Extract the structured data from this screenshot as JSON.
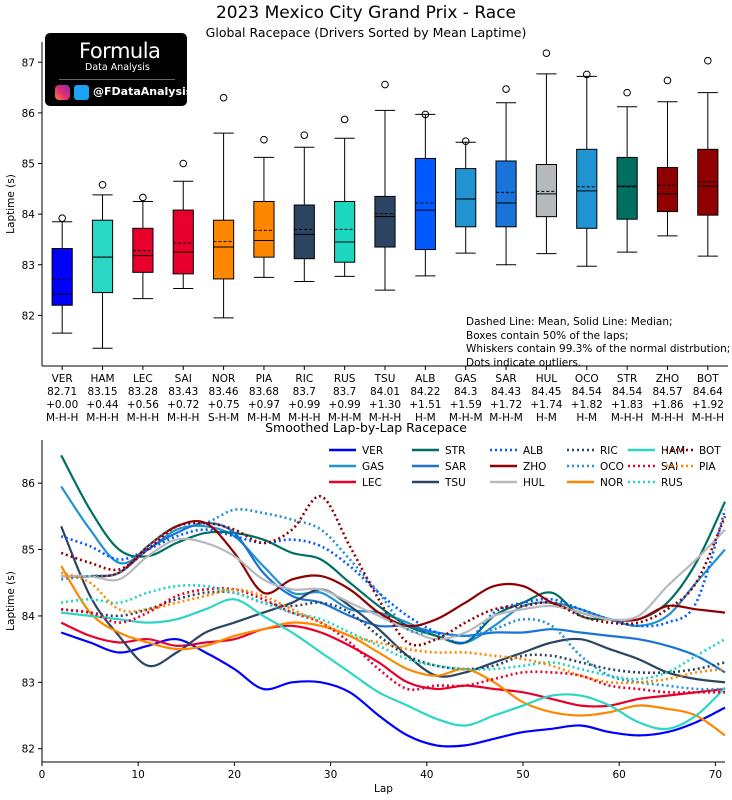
{
  "logo": {
    "name": "Formula",
    "tagline": "Data Analysis",
    "handle": "@FDataAnalysis",
    "icons": [
      "instagram-icon",
      "twitter-icon"
    ]
  },
  "box_note": [
    "Dashed Line: Mean, Solid Line: Median;",
    "Boxes contain 50% of the laps;",
    "Whiskers contain 99.3% of the normal distrbution;",
    "Dots indicate outliers."
  ],
  "chart_data": [
    {
      "type": "box",
      "title": "2023 Mexico City Grand Prix - Race",
      "subtitle": "Global Racepace (Drivers Sorted by Mean Laptime)",
      "ylabel": "Laptime (s)",
      "ylim": [
        81.0,
        87.4
      ],
      "yticks": [
        82,
        83,
        84,
        85,
        86,
        87
      ],
      "drivers": [
        {
          "code": "VER",
          "mean": "82.71",
          "gap": "+0.00",
          "tyres": "M-H-H",
          "color": "#0000ff",
          "q1": 82.2,
          "median": 82.42,
          "q3": 83.32,
          "whisker_low": 81.65,
          "whisker_high": 83.85,
          "outliers": [
            83.92
          ]
        },
        {
          "code": "HAM",
          "mean": "83.15",
          "gap": "+0.44",
          "tyres": "M-H-H",
          "color": "#2ad6c4",
          "q1": 82.45,
          "median": 83.15,
          "q3": 83.88,
          "whisker_low": 81.35,
          "whisker_high": 84.38,
          "outliers": [
            84.58
          ]
        },
        {
          "code": "LEC",
          "mean": "83.28",
          "gap": "+0.56",
          "tyres": "M-H-H",
          "color": "#e8002d",
          "q1": 82.85,
          "median": 83.18,
          "q3": 83.72,
          "whisker_low": 82.33,
          "whisker_high": 84.25,
          "outliers": [
            84.33
          ]
        },
        {
          "code": "SAI",
          "mean": "83.43",
          "gap": "+0.72",
          "tyres": "M-H-H",
          "color": "#e8002d",
          "q1": 82.82,
          "median": 83.25,
          "q3": 84.08,
          "whisker_low": 82.53,
          "whisker_high": 84.65,
          "outliers": [
            85.0
          ]
        },
        {
          "code": "NOR",
          "mean": "83.46",
          "gap": "+0.75",
          "tyres": "S-H-M",
          "color": "#ff8700",
          "q1": 82.72,
          "median": 83.35,
          "q3": 83.88,
          "whisker_low": 81.95,
          "whisker_high": 85.6,
          "outliers": [
            86.3
          ]
        },
        {
          "code": "PIA",
          "mean": "83.68",
          "gap": "+0.97",
          "tyres": "M-H-M",
          "color": "#ff8700",
          "q1": 83.15,
          "median": 83.48,
          "q3": 84.25,
          "whisker_low": 82.75,
          "whisker_high": 85.12,
          "outliers": [
            85.47
          ]
        },
        {
          "code": "RIC",
          "mean": "83.7",
          "gap": "+0.99",
          "tyres": "M-H-H",
          "color": "#2b4562",
          "q1": 83.12,
          "median": 83.6,
          "q3": 84.18,
          "whisker_low": 82.67,
          "whisker_high": 85.32,
          "outliers": [
            85.56
          ]
        },
        {
          "code": "RUS",
          "mean": "83.7",
          "gap": "+0.99",
          "tyres": "M-H-M",
          "color": "#1dd6c0",
          "q1": 83.05,
          "median": 83.45,
          "q3": 84.25,
          "whisker_low": 82.77,
          "whisker_high": 85.5,
          "outliers": [
            85.87
          ]
        },
        {
          "code": "TSU",
          "mean": "84.01",
          "gap": "+1.30",
          "tyres": "M-H-H",
          "color": "#2b4562",
          "q1": 83.35,
          "median": 83.95,
          "q3": 84.35,
          "whisker_low": 82.5,
          "whisker_high": 86.05,
          "outliers": [
            86.56
          ]
        },
        {
          "code": "ALB",
          "mean": "84.22",
          "gap": "+1.51",
          "tyres": "H-M",
          "color": "#005aff",
          "q1": 83.3,
          "median": 84.08,
          "q3": 85.1,
          "whisker_low": 82.78,
          "whisker_high": 85.97,
          "outliers": [
            85.97
          ]
        },
        {
          "code": "GAS",
          "mean": "84.3",
          "gap": "+1.59",
          "tyres": "M-H-M",
          "color": "#2293d1",
          "q1": 83.75,
          "median": 84.3,
          "q3": 84.9,
          "whisker_low": 83.23,
          "whisker_high": 85.42,
          "outliers": [
            85.44
          ]
        },
        {
          "code": "SAR",
          "mean": "84.43",
          "gap": "+1.72",
          "tyres": "M-H-M",
          "color": "#1a73d8",
          "q1": 83.75,
          "median": 84.22,
          "q3": 85.05,
          "whisker_low": 83.0,
          "whisker_high": 86.2,
          "outliers": [
            86.47
          ]
        },
        {
          "code": "HUL",
          "mean": "84.45",
          "gap": "+1.74",
          "tyres": "H-M",
          "color": "#b6babd",
          "q1": 83.95,
          "median": 84.4,
          "q3": 84.98,
          "whisker_low": 83.22,
          "whisker_high": 86.77,
          "outliers": [
            87.18
          ]
        },
        {
          "code": "OCO",
          "mean": "84.54",
          "gap": "+1.82",
          "tyres": "H-M",
          "color": "#2293d1",
          "q1": 83.72,
          "median": 84.46,
          "q3": 85.28,
          "whisker_low": 82.97,
          "whisker_high": 86.72,
          "outliers": [
            86.76
          ]
        },
        {
          "code": "STR",
          "mean": "84.54",
          "gap": "+1.83",
          "tyres": "M-H-H",
          "color": "#006f62",
          "q1": 83.9,
          "median": 84.55,
          "q3": 85.12,
          "whisker_low": 83.25,
          "whisker_high": 86.12,
          "outliers": [
            86.4
          ]
        },
        {
          "code": "ZHO",
          "mean": "84.57",
          "gap": "+1.86",
          "tyres": "M-H-H",
          "color": "#900000",
          "q1": 84.05,
          "median": 84.4,
          "q3": 84.92,
          "whisker_low": 83.57,
          "whisker_high": 86.22,
          "outliers": [
            86.64
          ]
        },
        {
          "code": "BOT",
          "mean": "84.64",
          "gap": "+1.92",
          "tyres": "M-H-H",
          "color": "#900000",
          "q1": 83.98,
          "median": 84.55,
          "q3": 85.28,
          "whisker_low": 83.17,
          "whisker_high": 86.4,
          "outliers": [
            87.03
          ]
        }
      ]
    },
    {
      "type": "line",
      "title": "Smoothed Lap-by-Lap Racepace",
      "xlabel": "Lap",
      "ylabel": "Laptime (s)",
      "xlim": [
        0,
        71
      ],
      "ylim": [
        81.8,
        86.65
      ],
      "xticks": [
        0,
        10,
        20,
        30,
        40,
        50,
        60,
        70
      ],
      "yticks": [
        82,
        83,
        84,
        85,
        86
      ],
      "x": [
        2,
        5,
        8,
        11,
        14,
        17,
        20,
        23,
        26,
        29,
        32,
        35,
        38,
        41,
        44,
        47,
        50,
        53,
        56,
        59,
        62,
        65,
        68,
        71
      ],
      "series": [
        {
          "name": "VER",
          "color": "#0000ff",
          "style": "solid",
          "values": [
            83.75,
            83.6,
            83.45,
            83.55,
            83.65,
            83.45,
            83.2,
            82.9,
            83.0,
            83.0,
            82.85,
            82.5,
            82.2,
            82.05,
            82.05,
            82.15,
            82.25,
            82.3,
            82.35,
            82.25,
            82.2,
            82.25,
            82.4,
            82.62
          ]
        },
        {
          "name": "GAS",
          "color": "#2293d1",
          "style": "solid",
          "values": [
            85.95,
            85.3,
            84.8,
            85.0,
            85.3,
            85.35,
            85.2,
            84.75,
            84.35,
            84.35,
            84.1,
            84.05,
            83.9,
            83.7,
            83.6,
            83.85,
            84.15,
            84.2,
            84.1,
            83.95,
            83.85,
            84.0,
            84.5,
            85.0
          ]
        },
        {
          "name": "LEC",
          "color": "#e8002d",
          "style": "solid",
          "values": [
            83.9,
            83.7,
            83.6,
            83.65,
            83.55,
            83.6,
            83.65,
            83.8,
            83.85,
            83.75,
            83.55,
            83.3,
            83.0,
            82.9,
            82.95,
            82.9,
            82.85,
            82.75,
            82.65,
            82.65,
            82.75,
            82.8,
            82.85,
            82.9
          ]
        },
        {
          "name": "STR",
          "color": "#006f62",
          "style": "solid",
          "values": [
            86.42,
            85.6,
            85.0,
            84.9,
            85.1,
            85.25,
            85.25,
            85.15,
            84.95,
            84.85,
            84.5,
            84.15,
            83.85,
            83.7,
            83.6,
            84.0,
            84.2,
            84.35,
            84.0,
            83.95,
            83.95,
            84.2,
            84.8,
            85.72
          ]
        },
        {
          "name": "SAR",
          "color": "#1a73d8",
          "style": "solid",
          "values": [
            84.6,
            84.6,
            84.65,
            85.0,
            85.25,
            85.4,
            85.25,
            84.65,
            84.3,
            84.2,
            84.0,
            83.85,
            83.85,
            83.75,
            83.7,
            83.75,
            83.75,
            83.8,
            83.75,
            83.7,
            83.65,
            83.55,
            83.4,
            83.15
          ]
        },
        {
          "name": "TSU",
          "color": "#2b4562",
          "style": "solid",
          "values": [
            85.35,
            84.3,
            83.7,
            83.25,
            83.45,
            83.75,
            83.9,
            84.05,
            84.2,
            84.4,
            84.15,
            83.8,
            83.4,
            83.1,
            83.15,
            83.3,
            83.45,
            83.6,
            83.65,
            83.5,
            83.35,
            83.15,
            83.05,
            83.0
          ]
        },
        {
          "name": "ALB",
          "color": "#005aff",
          "style": "dotted",
          "values": [
            85.2,
            85.05,
            84.85,
            85.0,
            85.2,
            85.3,
            85.2,
            85.1,
            85.15,
            85.05,
            84.75,
            84.35,
            84.0,
            83.75,
            83.6,
            84.05,
            84.2,
            84.25,
            84.1,
            83.95,
            83.85,
            83.9,
            84.2,
            85.6
          ]
        },
        {
          "name": "ZHO",
          "color": "#900000",
          "style": "solid",
          "values": [
            84.6,
            84.6,
            84.65,
            85.05,
            85.35,
            85.4,
            84.95,
            84.35,
            84.55,
            84.6,
            84.4,
            84.05,
            83.85,
            83.95,
            84.2,
            84.45,
            84.45,
            84.2,
            84.05,
            83.95,
            83.95,
            84.15,
            84.1,
            84.05
          ]
        },
        {
          "name": "HUL",
          "color": "#b6babd",
          "style": "solid",
          "values": [
            84.6,
            84.6,
            84.55,
            84.9,
            85.15,
            85.1,
            84.9,
            84.55,
            84.4,
            84.4,
            84.2,
            84.0,
            83.8,
            83.65,
            83.75,
            84.0,
            84.1,
            84.15,
            84.05,
            83.95,
            84.0,
            84.45,
            84.85,
            85.3
          ]
        },
        {
          "name": "RIC",
          "color": "#2b4562",
          "style": "dotted",
          "values": [
            84.1,
            84.05,
            84.0,
            84.1,
            84.25,
            84.35,
            84.35,
            84.2,
            84.15,
            84.2,
            84.05,
            83.7,
            83.4,
            83.25,
            83.2,
            83.25,
            83.4,
            83.4,
            83.3,
            83.2,
            83.15,
            83.15,
            83.2,
            83.3
          ]
        },
        {
          "name": "OCO",
          "color": "#2293d1",
          "style": "dotted",
          "values": [
            84.55,
            84.6,
            84.65,
            85.05,
            85.35,
            85.4,
            85.6,
            85.55,
            85.45,
            85.3,
            84.85,
            84.35,
            83.8,
            83.75,
            83.7,
            83.8,
            83.95,
            83.85,
            83.4,
            83.1,
            83.0,
            82.95,
            82.9,
            82.9
          ]
        },
        {
          "name": "NOR",
          "color": "#ff8700",
          "style": "solid",
          "values": [
            84.75,
            84.05,
            83.75,
            83.6,
            83.5,
            83.55,
            83.7,
            83.8,
            83.9,
            83.85,
            83.7,
            83.45,
            83.2,
            83.1,
            83.2,
            83.0,
            82.7,
            82.55,
            82.5,
            82.55,
            82.65,
            82.6,
            82.5,
            82.2
          ]
        },
        {
          "name": "HAM",
          "color": "#2ad6c4",
          "style": "solid",
          "values": [
            84.05,
            84.0,
            83.95,
            83.9,
            83.95,
            84.1,
            84.25,
            84.0,
            83.75,
            83.45,
            83.15,
            82.85,
            82.65,
            82.45,
            82.35,
            82.5,
            82.65,
            82.8,
            82.8,
            82.65,
            82.4,
            82.3,
            82.5,
            82.92
          ]
        },
        {
          "name": "SAI",
          "color": "#e8002d",
          "style": "dotted",
          "values": [
            84.1,
            84.05,
            83.9,
            84.05,
            84.3,
            84.4,
            84.4,
            84.25,
            84.05,
            83.9,
            83.6,
            83.2,
            82.9,
            82.95,
            82.95,
            83.05,
            83.15,
            83.15,
            83.1,
            82.95,
            82.9,
            82.85,
            82.85,
            82.85
          ]
        },
        {
          "name": "RUS",
          "color": "#1dd6c0",
          "style": "dotted",
          "values": [
            84.2,
            84.25,
            84.2,
            84.35,
            84.45,
            84.45,
            84.35,
            84.2,
            84.05,
            83.95,
            83.75,
            83.55,
            83.35,
            83.25,
            83.2,
            83.2,
            83.25,
            83.3,
            83.2,
            83.1,
            83.05,
            83.15,
            83.4,
            83.65
          ]
        },
        {
          "name": "BOT",
          "color": "#900000",
          "style": "dotted",
          "values": [
            84.95,
            84.8,
            84.7,
            85.0,
            85.35,
            85.4,
            85.3,
            85.1,
            85.3,
            85.8,
            85.05,
            84.25,
            83.6,
            83.65,
            83.9,
            84.1,
            84.15,
            84.2,
            84.0,
            83.9,
            83.9,
            84.1,
            84.5,
            85.5
          ]
        },
        {
          "name": "PIA",
          "color": "#ff8700",
          "style": "dotted",
          "values": [
            84.65,
            84.5,
            84.1,
            84.1,
            84.2,
            84.3,
            84.4,
            84.3,
            84.1,
            83.9,
            83.7,
            83.6,
            83.5,
            83.45,
            83.45,
            83.4,
            83.35,
            83.25,
            83.1,
            83.0,
            83.0,
            83.05,
            83.15,
            83.2
          ]
        }
      ]
    }
  ]
}
